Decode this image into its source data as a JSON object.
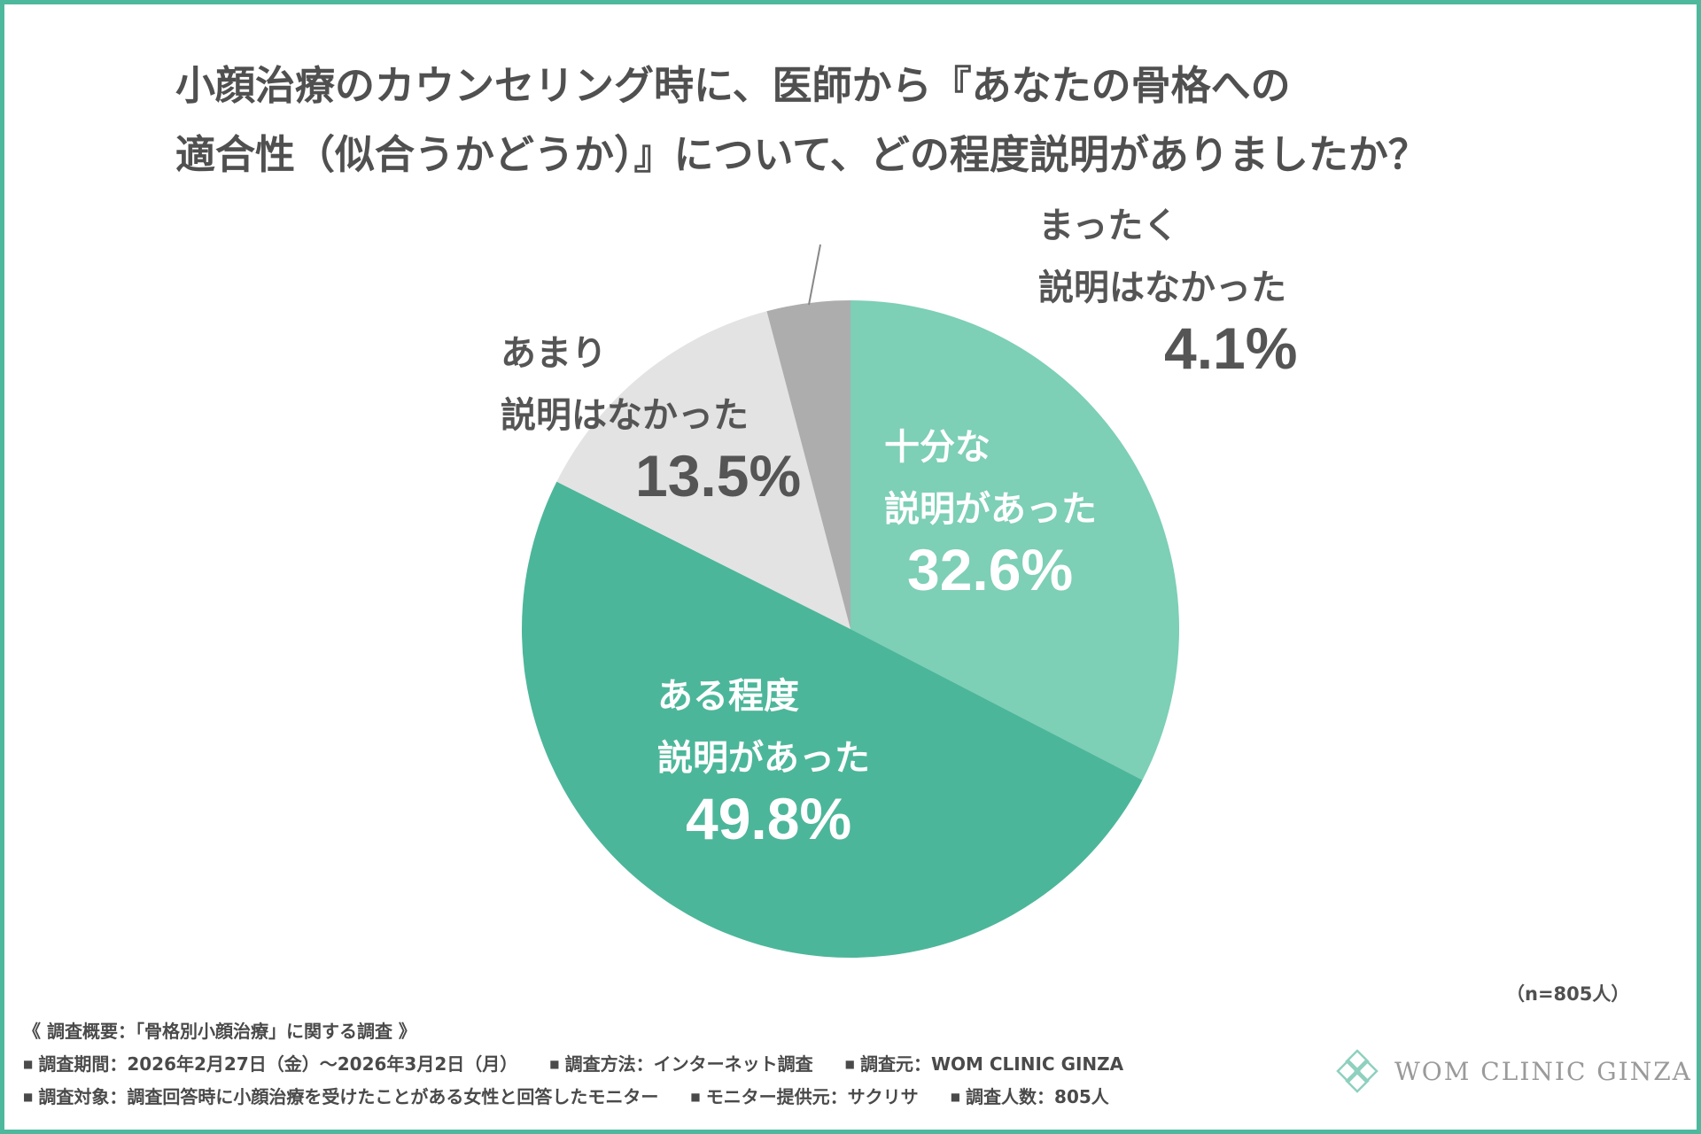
{
  "colors": {
    "frame": "#4db89c",
    "title_text": "#505050"
  },
  "title": {
    "line1": "小顔治療のカウンセリング時に、医師から『あなたの骨格への",
    "line2": "適合性（似合うかどうか）』について、どの程度説明がありましたか？"
  },
  "chart_data": {
    "type": "pie",
    "title": "小顔治療のカウンセリング時に、医師から『あなたの骨格への適合性（似合うかどうか）』について、どの程度説明がありましたか？",
    "start": "12 o'clock, clockwise",
    "slices": [
      {
        "id": "s1",
        "label_lines": [
          "十分な",
          "説明があった"
        ],
        "value": 32.6,
        "value_label": "32.6%",
        "color": "#7dcfb6",
        "text_color": "#ffffff"
      },
      {
        "id": "s2",
        "label_lines": [
          "ある程度",
          "説明があった"
        ],
        "value": 49.8,
        "value_label": "49.8%",
        "color": "#4cb69a",
        "text_color": "#ffffff"
      },
      {
        "id": "s3",
        "label_lines": [
          "あまり",
          "説明はなかった"
        ],
        "value": 13.5,
        "value_label": "13.5%",
        "color": "#e3e3e3",
        "text_color": "#555555"
      },
      {
        "id": "s4",
        "label_lines": [
          "まったく",
          "説明はなかった"
        ],
        "value": 4.1,
        "value_label": "4.1%",
        "color": "#adadad",
        "text_color": "#555555"
      }
    ],
    "sample_note": "（n=805人）"
  },
  "survey": {
    "heading": "《 調査概要：「骨格別小顔治療」に関する調査 》",
    "bullet": "■",
    "row1": [
      "調査期間：2026年2月27日（金）〜2026年3月2日（月）",
      "調査方法：インターネット調査",
      "調査元：WOM CLINIC GINZA"
    ],
    "row2": [
      "調査対象：調査回答時に小顔治療を受けたことがある女性と回答したモニター",
      "モニター提供元：サクリサ",
      "調査人数：805人"
    ]
  },
  "logo": {
    "text": "WOM CLINIC GINZA",
    "icon": "lotus-flower-icon",
    "color": "#8fd0bf"
  }
}
